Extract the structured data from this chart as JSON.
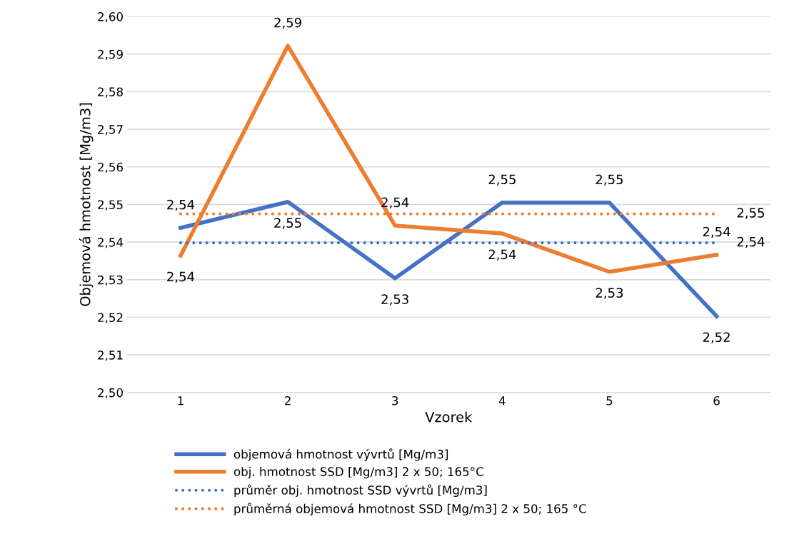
{
  "chart_data": {
    "type": "line",
    "xlabel": "Vzorek",
    "ylabel": "Objemová hmotnost [Mg/m3]",
    "categories": [
      "1",
      "2",
      "3",
      "4",
      "5",
      "6"
    ],
    "series": [
      {
        "name": "objemová hmotnost vývrtů [Mg/m3]",
        "color": "#4472c4",
        "line_style": "solid",
        "values": [
          2.5438,
          2.5507,
          2.5304,
          2.5505,
          2.5505,
          2.5203
        ],
        "value_labels": [
          "2,54",
          "2,55",
          "2,53",
          "2,55",
          "2,55",
          "2,52"
        ]
      },
      {
        "name": "obj. hmotnost SSD [Mg/m3] 2 x 50; 165°C",
        "color": "#ed7d31",
        "line_style": "solid",
        "values": [
          2.5364,
          2.5922,
          2.5444,
          2.5423,
          2.5321,
          2.5366
        ],
        "value_labels": [
          "2,54",
          "2,59",
          "2,54",
          "2,54",
          "2,53",
          "2,54"
        ]
      },
      {
        "name": "průměr obj. hmotnost SSD vývrtů [Mg/m3]",
        "color": "#4472c4",
        "line_style": "dotted",
        "values": [
          2.5398,
          2.5398,
          2.5398,
          2.5398,
          2.5398,
          2.5398
        ],
        "value_labels": [
          null,
          null,
          null,
          null,
          null,
          "2,54"
        ]
      },
      {
        "name": "průměrná objemová hmotnost SSD [Mg/m3] 2 x 50; 165 °C",
        "color": "#ed7d31",
        "line_style": "dotted",
        "values": [
          2.5475,
          2.5475,
          2.5475,
          2.5475,
          2.5475,
          2.5475
        ],
        "value_labels": [
          null,
          null,
          null,
          null,
          null,
          "2,55"
        ]
      }
    ],
    "ylim": [
      2.5,
      2.6
    ],
    "yticks": [
      {
        "value": 2.5,
        "label": "2,50"
      },
      {
        "value": 2.51,
        "label": "2,51"
      },
      {
        "value": 2.52,
        "label": "2,52"
      },
      {
        "value": 2.53,
        "label": "2,53"
      },
      {
        "value": 2.54,
        "label": "2,54"
      },
      {
        "value": 2.55,
        "label": "2,55"
      },
      {
        "value": 2.56,
        "label": "2,56"
      },
      {
        "value": 2.57,
        "label": "2,57"
      },
      {
        "value": 2.58,
        "label": "2,58"
      },
      {
        "value": 2.59,
        "label": "2,59"
      },
      {
        "value": 2.6,
        "label": "2,60"
      }
    ],
    "grid": "y",
    "legend": "bottom",
    "marker": "none"
  }
}
